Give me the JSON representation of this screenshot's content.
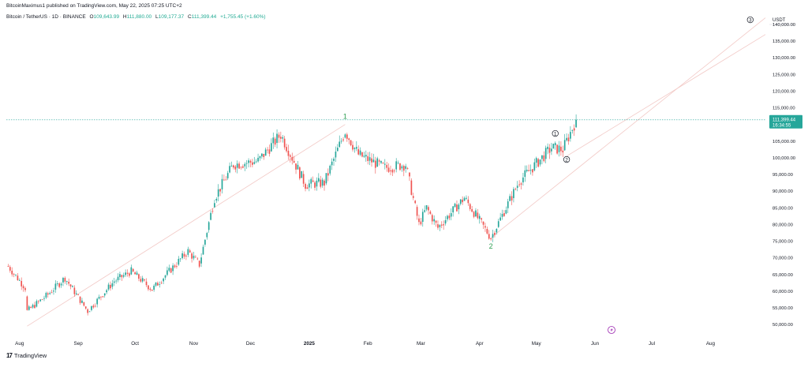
{
  "header": {
    "publisher": "BitcoinMaximus1 published on TradingView.com, May 22, 2025 07:25 UTC+2",
    "symbol": "Bitcoin / TetherUS · 1D · BINANCE",
    "open_label": "O",
    "open": "109,643.99",
    "high_label": "H",
    "high": "111,880.00",
    "low_label": "L",
    "low": "109,177.37",
    "close_label": "C",
    "close": "111,399.44",
    "change": "+1,755.45 (+1.60%)"
  },
  "footer": {
    "brand": "TradingView",
    "icon": "17"
  },
  "colors": {
    "up": "#26a69a",
    "down": "#ef5350",
    "price_line": "#26a69a",
    "price_tag": "#26a69a",
    "wave_label": "#2e9e52"
  },
  "chart_data": {
    "type": "candlestick",
    "title": "",
    "currency": "USDT",
    "ylim": [
      46000,
      144500
    ],
    "y_ticks": [
      "50,000.00",
      "55,000.00",
      "60,000.00",
      "65,000.00",
      "70,000.00",
      "75,000.00",
      "80,000.00",
      "85,000.00",
      "90,000.00",
      "95,000.00",
      "100,000.00",
      "105,000.00",
      "110,000.00",
      "115,000.00",
      "120,000.00",
      "125,000.00",
      "130,000.00",
      "135,000.00",
      "140,000.00"
    ],
    "x_ticks": [
      "Aug",
      "Sep",
      "Oct",
      "Nov",
      "Dec",
      "2025",
      "Feb",
      "Mar",
      "Apr",
      "May",
      "Jun",
      "Jul",
      "Aug"
    ],
    "x_tick_dates": [
      "2024-08-01",
      "2024-09-01",
      "2024-10-01",
      "2024-11-01",
      "2024-12-01",
      "2025-01-01",
      "2025-02-01",
      "2025-03-01",
      "2025-04-01",
      "2025-05-01",
      "2025-06-01",
      "2025-07-01",
      "2025-08-01"
    ],
    "x_range": [
      "2024-07-25",
      "2025-08-30"
    ],
    "current_price": "111,399.44",
    "countdown": "16:34:55",
    "horizontal_line": 111399.44,
    "path_points": [
      [
        "2024-07-26",
        67500
      ],
      [
        "2024-08-04",
        61000
      ],
      [
        "2024-08-05",
        54000
      ],
      [
        "2024-08-16",
        59000
      ],
      [
        "2024-08-25",
        64000
      ],
      [
        "2024-09-06",
        54000
      ],
      [
        "2024-09-20",
        63000
      ],
      [
        "2024-09-29",
        66000
      ],
      [
        "2024-10-10",
        60500
      ],
      [
        "2024-10-29",
        72000
      ],
      [
        "2024-11-04",
        68000
      ],
      [
        "2024-11-12",
        88000
      ],
      [
        "2024-11-22",
        98000
      ],
      [
        "2024-12-05",
        99000
      ],
      [
        "2024-12-17",
        107000
      ],
      [
        "2024-12-30",
        92000
      ],
      [
        "2025-01-09",
        92500
      ],
      [
        "2025-01-20",
        108000
      ],
      [
        "2025-01-27",
        101000
      ],
      [
        "2025-02-10",
        97000
      ],
      [
        "2025-02-21",
        98000
      ],
      [
        "2025-02-28",
        80000
      ],
      [
        "2025-03-04",
        85000
      ],
      [
        "2025-03-10",
        79000
      ],
      [
        "2025-03-24",
        88000
      ],
      [
        "2025-03-31",
        82000
      ],
      [
        "2025-04-07",
        76000
      ],
      [
        "2025-04-22",
        93000
      ],
      [
        "2025-05-09",
        103000
      ],
      [
        "2025-05-15",
        102500
      ],
      [
        "2025-05-22",
        111400
      ]
    ],
    "wave_labels": [
      {
        "text": "1",
        "date": "2025-01-20",
        "price": 111700,
        "style": "plain"
      },
      {
        "text": "2",
        "date": "2025-04-07",
        "price": 72800,
        "style": "plain"
      },
      {
        "text": "1",
        "date": "2025-05-11",
        "price": 107300,
        "style": "circle"
      },
      {
        "text": "2",
        "date": "2025-05-17",
        "price": 99500,
        "style": "circle"
      },
      {
        "text": "3",
        "date": "2025-08-22",
        "price": 141400,
        "style": "circle"
      }
    ],
    "channel_lines": [
      {
        "from": [
          "2024-08-05",
          49500
        ],
        "to": [
          "2025-01-20",
          110000
        ]
      },
      {
        "from": [
          "2025-04-07",
          76000
        ],
        "to": [
          "2025-08-30",
          142000
        ]
      },
      {
        "from": [
          "2025-05-17",
          100500
        ],
        "to": [
          "2025-08-30",
          137000
        ]
      }
    ]
  }
}
